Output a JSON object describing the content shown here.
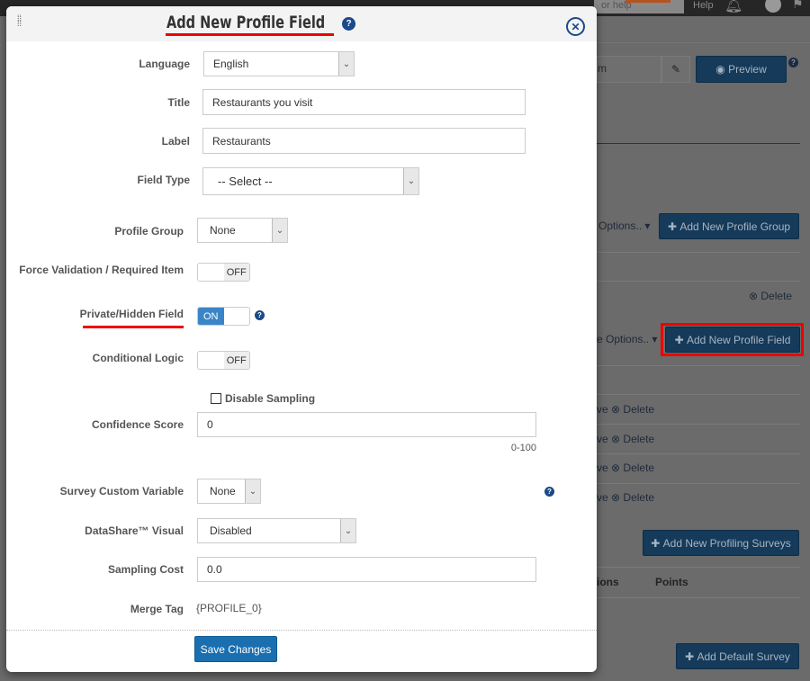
{
  "background": {
    "search_text": "or help",
    "help_link": "Help",
    "preview_label": "Preview",
    "input_fragment": "m",
    "options1": "Options..",
    "add_group": "Add New Profile Group",
    "delete1": "Delete",
    "options2": "e Options..",
    "add_field": "Add New Profile Field",
    "row_action": "ve",
    "row_delete": "Delete",
    "add_surveys": "Add New Profiling Surveys",
    "col_options": "ions",
    "col_points": "Points",
    "add_default": "Add Default Survey"
  },
  "modal": {
    "title": "Add New Profile Field",
    "fields": {
      "language": {
        "label": "Language",
        "value": "English"
      },
      "title": {
        "label": "Title",
        "value": "Restaurants you visit"
      },
      "label": {
        "label": "Label",
        "value": "Restaurants"
      },
      "field_type": {
        "label": "Field Type",
        "value": "-- Select --"
      },
      "profile_group": {
        "label": "Profile Group",
        "value": "None"
      },
      "force_validation": {
        "label": "Force Validation / Required Item",
        "value": "OFF"
      },
      "private_hidden": {
        "label": "Private/Hidden Field",
        "value": "ON"
      },
      "conditional_logic": {
        "label": "Conditional Logic",
        "value": "OFF"
      },
      "disable_sampling": {
        "label": "Disable Sampling",
        "checked": false
      },
      "confidence_score": {
        "label": "Confidence Score",
        "value": "0",
        "hint": "0-100"
      },
      "survey_custom_variable": {
        "label": "Survey Custom Variable",
        "value": "None"
      },
      "datashare_visual": {
        "label": "DataShare™ Visual",
        "value": "Disabled"
      },
      "sampling_cost": {
        "label": "Sampling Cost",
        "value": "0.0"
      },
      "merge_tag": {
        "label": "Merge Tag",
        "value": "{PROFILE_0}"
      }
    },
    "save_label": "Save Changes"
  },
  "colors": {
    "accent": "#1a6fb0",
    "highlight": "#e00000",
    "toggle_on": "#3a85c8"
  }
}
